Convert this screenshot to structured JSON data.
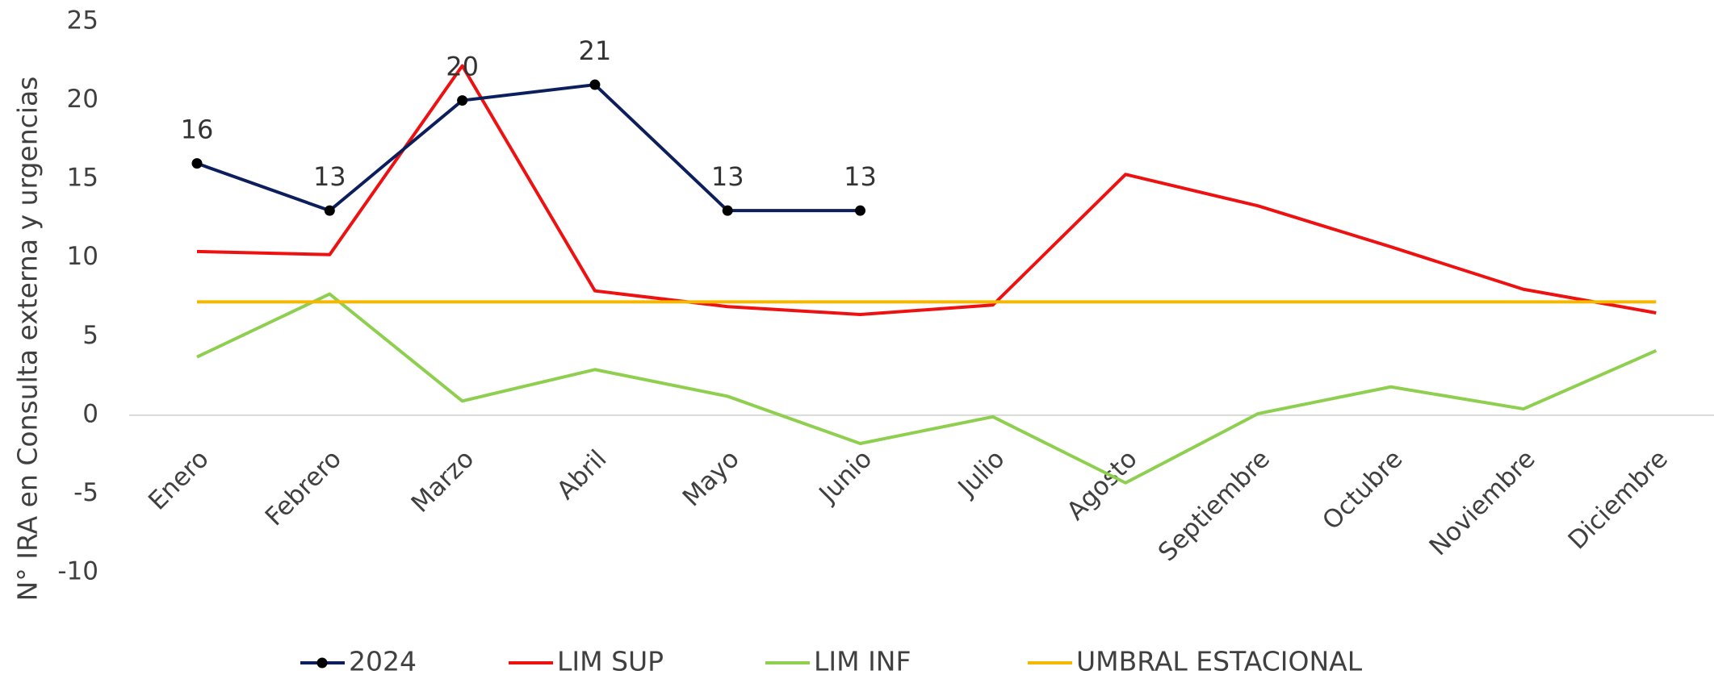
{
  "chart_data": {
    "type": "line",
    "y_label": "N° IRA en Consulta externa y urgencias",
    "categories": [
      "Enero",
      "Febrero",
      "Marzo",
      "Abril",
      "Mayo",
      "Junio",
      "Julio",
      "Agosto",
      "Septiembre",
      "Octubre",
      "Noviembre",
      "Diciembre"
    ],
    "series": [
      {
        "name": "2024",
        "color": "#0c1f5c",
        "marker": true,
        "data_labels": true,
        "values": [
          16,
          13,
          20,
          21,
          13,
          13,
          null,
          null,
          null,
          null,
          null,
          null
        ]
      },
      {
        "name": "LIM SUP",
        "color": "#ee1111",
        "values": [
          10.4,
          10.2,
          22.2,
          7.9,
          6.9,
          6.4,
          7.0,
          15.3,
          13.3,
          10.7,
          8.0,
          6.5
        ]
      },
      {
        "name": "LIM INF",
        "color": "#8fcf4f",
        "values": [
          3.7,
          7.7,
          0.9,
          2.9,
          1.2,
          -1.8,
          -0.1,
          -4.3,
          0.1,
          1.8,
          0.4,
          4.1
        ]
      },
      {
        "name": "UMBRAL ESTACIONAL",
        "color": "#f5b700",
        "values": [
          7.2,
          7.2,
          7.2,
          7.2,
          7.2,
          7.2,
          7.2,
          7.2,
          7.2,
          7.2,
          7.2,
          7.2
        ]
      }
    ],
    "ylim": [
      -10,
      25
    ],
    "yticks": [
      -10,
      -5,
      0,
      5,
      10,
      15,
      20,
      25
    ]
  }
}
